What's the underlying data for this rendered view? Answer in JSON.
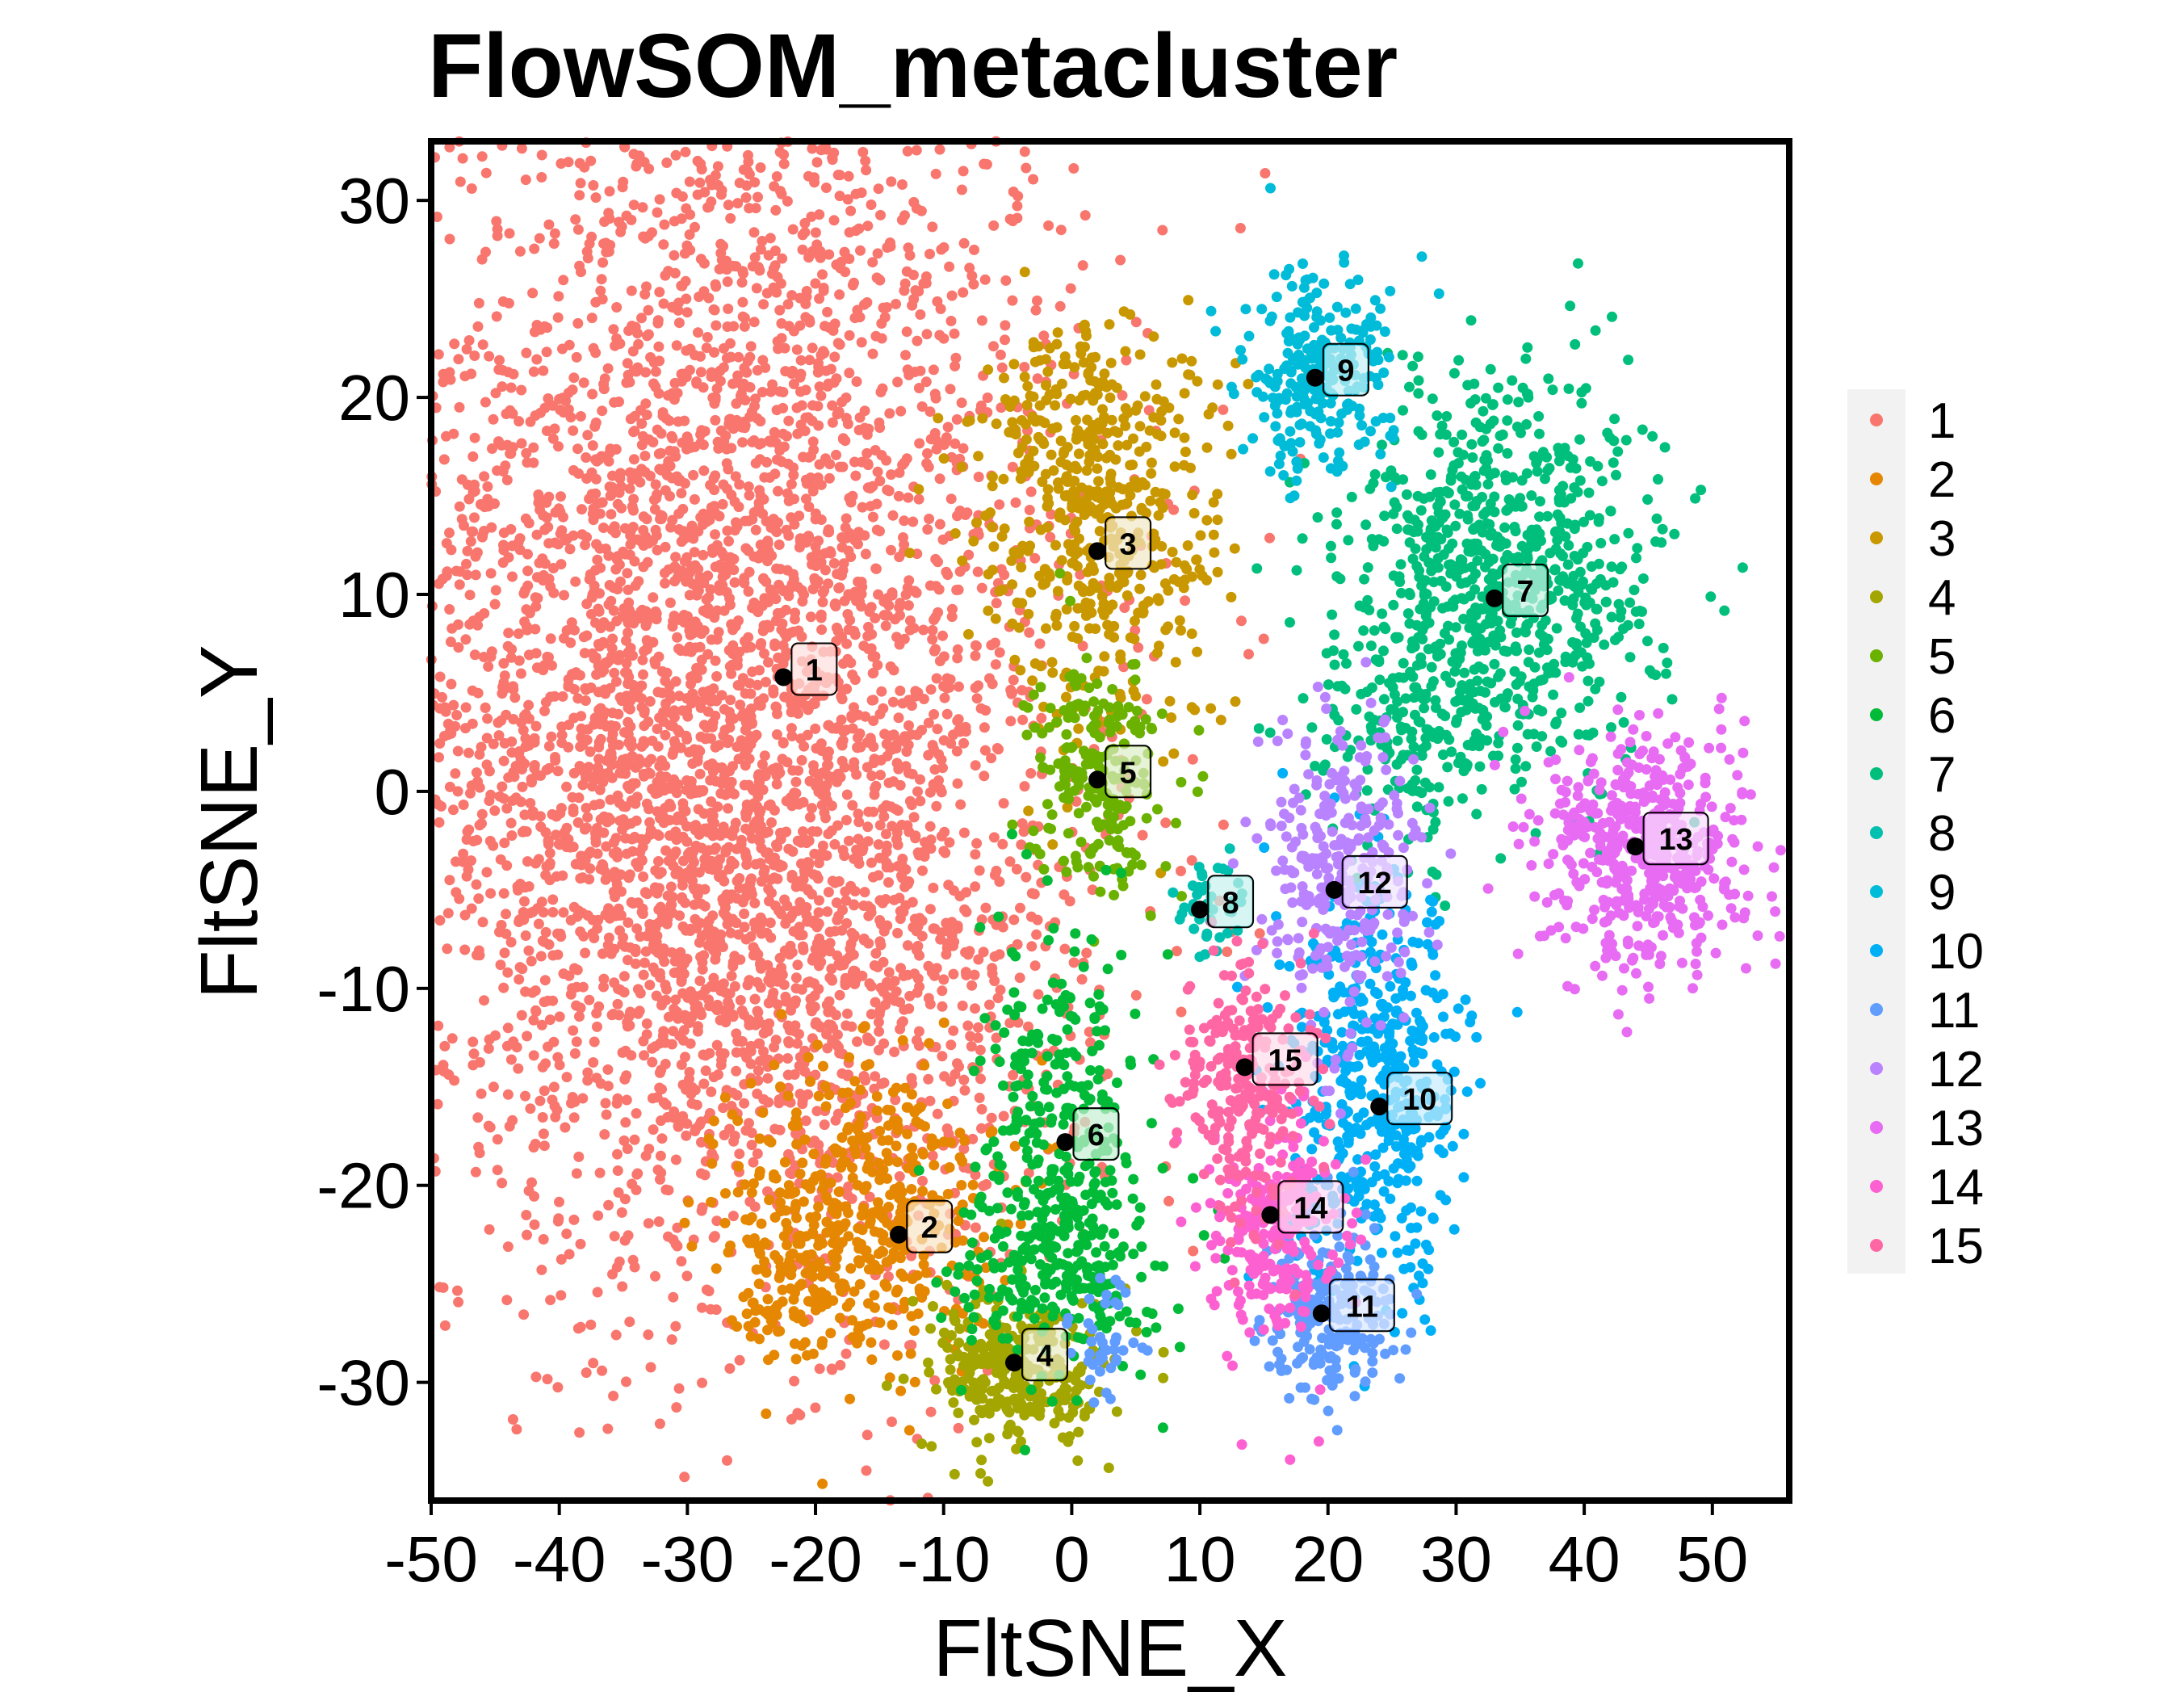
{
  "chart_data": {
    "type": "scatter",
    "title": "FlowSOM_metacluster",
    "xlabel": "FltSNE_X",
    "ylabel": "FltSNE_Y",
    "xlim": [
      -50,
      56
    ],
    "ylim": [
      -36,
      33
    ],
    "x_ticks": [
      -50,
      -40,
      -30,
      -20,
      -10,
      0,
      10,
      20,
      30,
      40,
      50
    ],
    "y_ticks": [
      30,
      20,
      10,
      0,
      -10,
      -20,
      -30
    ],
    "grid": false,
    "legend_position": "right",
    "clusters": [
      {
        "name": "1",
        "color": "#F8766D",
        "centroid": [
          -22.5,
          5.8
        ],
        "blobs": [
          [
            -27,
            10,
            14,
            16,
            3400
          ],
          [
            -18,
            -10,
            10,
            8,
            800
          ],
          [
            -34,
            -2,
            8,
            10,
            700
          ]
        ]
      },
      {
        "name": "2",
        "color": "#E58700",
        "centroid": [
          -13.5,
          -22.5
        ],
        "blobs": [
          [
            -16,
            -21,
            5,
            4,
            400
          ],
          [
            -22,
            -24,
            2.5,
            2.5,
            120
          ]
        ]
      },
      {
        "name": "3",
        "color": "#C99800",
        "centroid": [
          2.0,
          12.2
        ],
        "blobs": [
          [
            2,
            13,
            5,
            5,
            450
          ],
          [
            0,
            20,
            2.5,
            2.5,
            80
          ]
        ]
      },
      {
        "name": "4",
        "color": "#A3A500",
        "centroid": [
          -4.5,
          -29.0
        ],
        "blobs": [
          [
            -4,
            -29.5,
            3.5,
            2,
            300
          ]
        ]
      },
      {
        "name": "5",
        "color": "#6BB100",
        "centroid": [
          2.0,
          0.6
        ],
        "blobs": [
          [
            2,
            1,
            2.5,
            3,
            220
          ]
        ]
      },
      {
        "name": "6",
        "color": "#00BA38",
        "centroid": [
          -0.5,
          -17.8
        ],
        "blobs": [
          [
            -1,
            -18,
            3,
            5,
            300
          ],
          [
            -1,
            -24,
            4,
            2.5,
            200
          ]
        ]
      },
      {
        "name": "7",
        "color": "#00BF7D",
        "centroid": [
          33.0,
          9.8
        ],
        "blobs": [
          [
            34,
            11,
            6,
            5,
            800
          ],
          [
            26,
            3,
            4,
            3,
            150
          ]
        ]
      },
      {
        "name": "8",
        "color": "#00C0AF",
        "centroid": [
          10.0,
          -6.0
        ],
        "blobs": [
          [
            10.5,
            -6,
            1.5,
            1.5,
            40
          ]
        ]
      },
      {
        "name": "9",
        "color": "#00BCD8",
        "centroid": [
          19.0,
          21.0
        ],
        "blobs": [
          [
            19,
            21,
            3,
            2.5,
            260
          ]
        ]
      },
      {
        "name": "10",
        "color": "#00B0F6",
        "centroid": [
          24.0,
          -16.0
        ],
        "blobs": [
          [
            24,
            -15,
            3.5,
            5,
            500
          ]
        ]
      },
      {
        "name": "11",
        "color": "#619CFF",
        "centroid": [
          19.5,
          -26.5
        ],
        "blobs": [
          [
            20,
            -26.5,
            2.5,
            2.2,
            220
          ],
          [
            3,
            -28,
            1.5,
            1.5,
            40
          ]
        ]
      },
      {
        "name": "12",
        "color": "#B983FF",
        "centroid": [
          20.5,
          -5.0
        ],
        "blobs": [
          [
            21,
            -4,
            3,
            4,
            300
          ]
        ]
      },
      {
        "name": "13",
        "color": "#E76BF3",
        "centroid": [
          44.0,
          -2.8
        ],
        "blobs": [
          [
            45,
            -3,
            4,
            3,
            500
          ]
        ]
      },
      {
        "name": "14",
        "color": "#FD61D1",
        "centroid": [
          15.5,
          -21.5
        ],
        "blobs": [
          [
            16,
            -22,
            2.5,
            3,
            250
          ]
        ]
      },
      {
        "name": "15",
        "color": "#FF67A4",
        "centroid": [
          13.5,
          -14.0
        ],
        "blobs": [
          [
            13.5,
            -15,
            2.5,
            3.5,
            250
          ]
        ]
      }
    ]
  }
}
